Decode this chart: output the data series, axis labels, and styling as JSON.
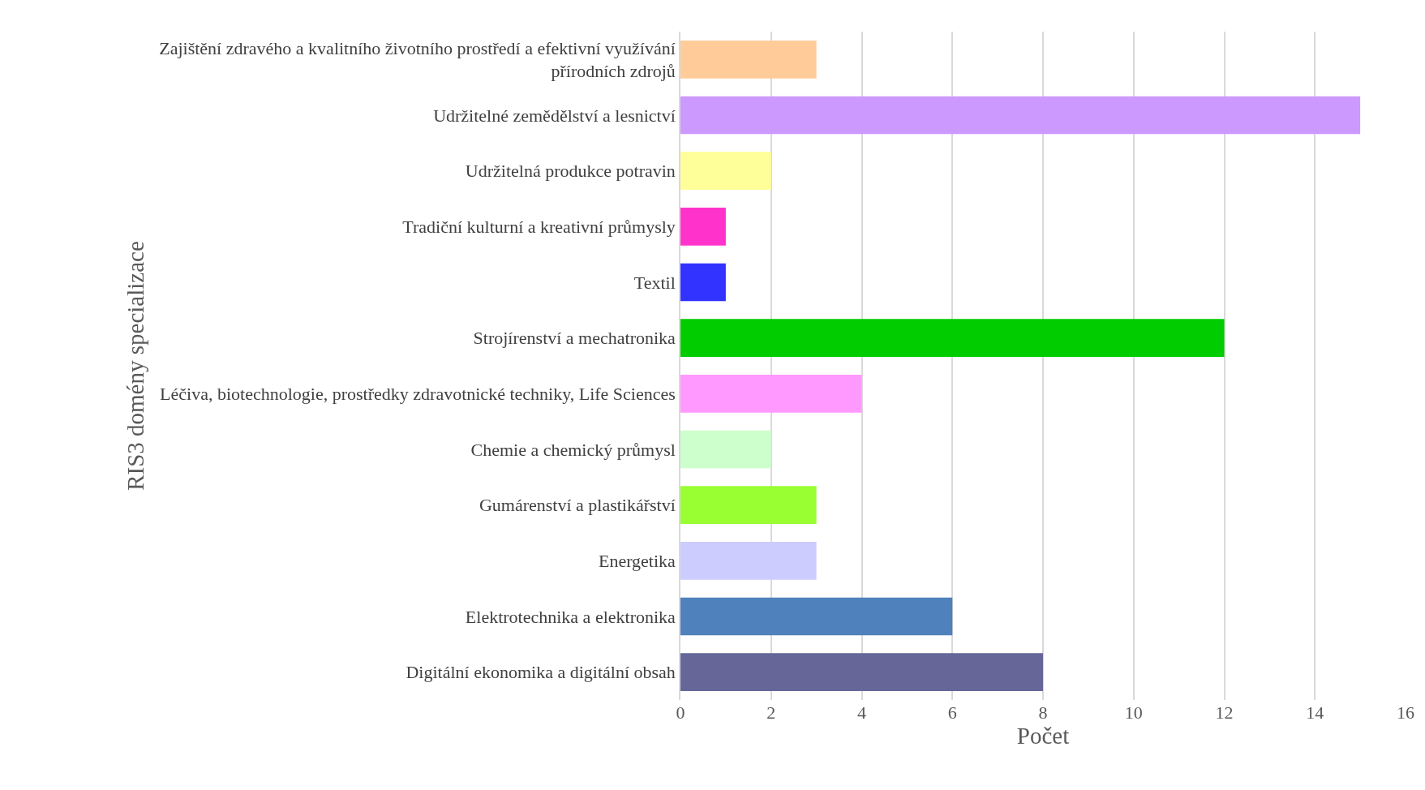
{
  "chart_data": {
    "type": "bar",
    "orientation": "horizontal",
    "xlabel": "Počet",
    "ylabel": "RIS3 domény specializace",
    "categories": [
      "Zajištění zdravého a kvalitního životního prostředí a efektivní využívání přírodních zdrojů",
      "Udržitelné zemědělství a lesnictví",
      "Udržitelná produkce potravin",
      "Tradiční kulturní a kreativní průmysly",
      "Textil",
      "Strojírenství a mechatronika",
      "Léčiva, biotechnologie, prostředky zdravotnické techniky, Life Sciences",
      "Chemie a chemický průmysl",
      "Gumárenství a plastikářství",
      "Energetika",
      "Elektrotechnika a elektronika",
      "Digitální ekonomika a digitální obsah"
    ],
    "values": [
      3,
      15,
      2,
      1,
      1,
      12,
      4,
      2,
      3,
      3,
      6,
      8
    ],
    "colors": [
      "#ffcc99",
      "#cc99ff",
      "#ffff99",
      "#ff33cc",
      "#3333ff",
      "#00cc00",
      "#ff99ff",
      "#ccffcc",
      "#99ff33",
      "#ccccff",
      "#4f81bd",
      "#666699"
    ],
    "xlim": [
      0,
      16
    ],
    "xticks": [
      0,
      2,
      4,
      6,
      8,
      10,
      12,
      14,
      16
    ],
    "grid": "x"
  }
}
